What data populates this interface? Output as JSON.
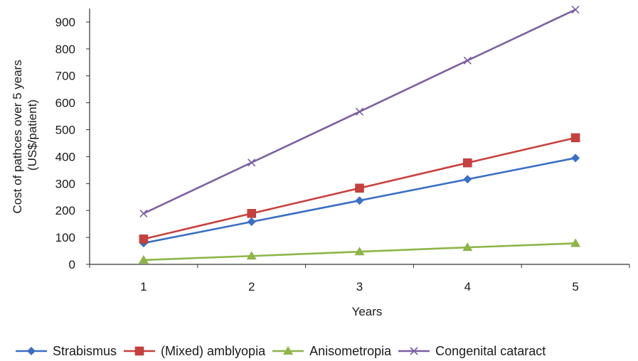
{
  "chart_data": {
    "type": "line",
    "title": "",
    "xlabel": "Years",
    "ylabel": [
      "Cost of pathces over 5 years",
      "(US$/patient)"
    ],
    "categories": [
      "1",
      "2",
      "3",
      "4",
      "5"
    ],
    "yticks": [
      "0",
      "100",
      "200",
      "300",
      "400",
      "500",
      "600",
      "700",
      "800",
      "900"
    ],
    "ylim": [
      0,
      950
    ],
    "grid": false,
    "legend_position": "bottom",
    "series": [
      {
        "name": "Strabismus",
        "values": [
          79,
          158,
          237,
          316,
          395
        ],
        "color": "#3a6fc4",
        "marker": "diamond"
      },
      {
        "name": "(Mixed) amblyopia",
        "values": [
          94,
          189,
          283,
          377,
          470
        ],
        "color": "#c8403d",
        "marker": "square"
      },
      {
        "name": "Anisometropia",
        "values": [
          16,
          31,
          47,
          63,
          78
        ],
        "color": "#8db547",
        "marker": "triangle"
      },
      {
        "name": "Congenital cataract",
        "values": [
          189,
          378,
          567,
          757,
          946
        ],
        "color": "#7b5fa2",
        "marker": "x"
      }
    ]
  }
}
